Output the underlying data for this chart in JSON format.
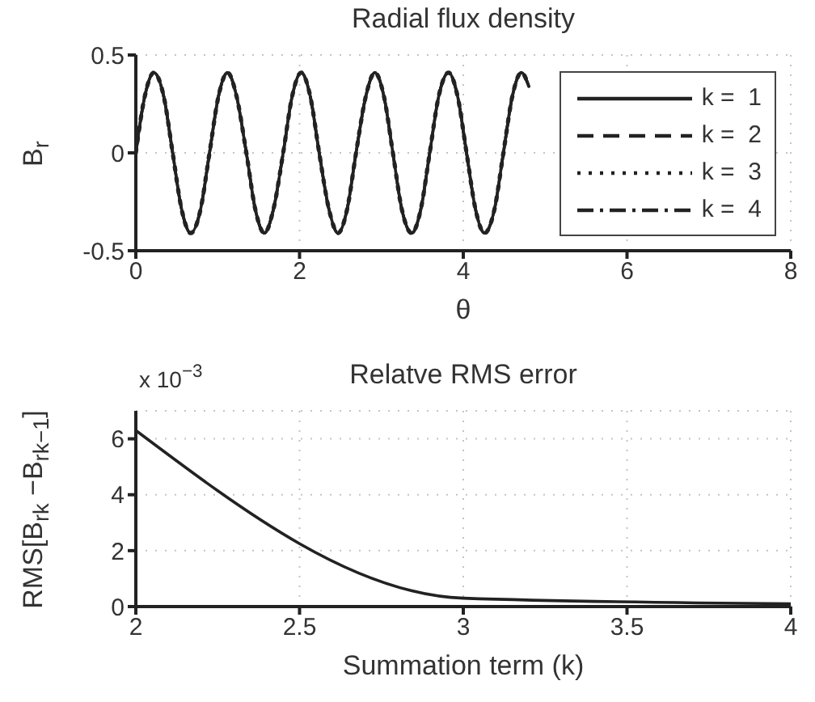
{
  "chart_data": [
    {
      "type": "line",
      "title": "Radial flux density",
      "xlabel": "θ",
      "ylabel": "B$_{r}$",
      "x": [
        0,
        0.11,
        0.22,
        0.34,
        0.45,
        0.56,
        0.67,
        0.79,
        0.9,
        1.01,
        1.12,
        1.23,
        1.35,
        1.46,
        1.57,
        1.68,
        1.8,
        1.91,
        2.02,
        2.13,
        2.24,
        2.36,
        2.47,
        2.58,
        2.69,
        2.81,
        2.92,
        3.03,
        3.14,
        3.25,
        3.37,
        3.48,
        3.59,
        3.7,
        3.82,
        3.93,
        4.04,
        4.15,
        4.26,
        4.38,
        4.49,
        4.6,
        4.71,
        4.8
      ],
      "series": [
        {
          "name": "k =  1",
          "color": "#222222",
          "line_style": "solid",
          "values": [
            0,
            0.29,
            0.41,
            0.29,
            0,
            -0.29,
            -0.41,
            -0.29,
            0,
            0.29,
            0.41,
            0.29,
            0,
            -0.29,
            -0.41,
            -0.29,
            0,
            0.29,
            0.41,
            0.29,
            0,
            -0.29,
            -0.41,
            -0.29,
            0,
            0.29,
            0.41,
            0.29,
            0,
            -0.29,
            -0.41,
            -0.29,
            0,
            0.29,
            0.41,
            0.29,
            0,
            -0.29,
            -0.41,
            -0.29,
            0,
            0.29,
            0.41,
            0.34
          ]
        },
        {
          "name": "k =  2",
          "color": "#222222",
          "line_style": "dashed",
          "values": [
            0,
            0.29,
            0.41,
            0.29,
            0,
            -0.29,
            -0.41,
            -0.29,
            0,
            0.29,
            0.41,
            0.29,
            0,
            -0.29,
            -0.41,
            -0.29,
            0,
            0.29,
            0.41,
            0.29,
            0,
            -0.29,
            -0.41,
            -0.29,
            0,
            0.29,
            0.41,
            0.29,
            0,
            -0.29,
            -0.41,
            -0.29,
            0,
            0.29,
            0.41,
            0.29,
            0,
            -0.29,
            -0.41,
            -0.29,
            0,
            0.29,
            0.41,
            0.34
          ]
        },
        {
          "name": "k =  3",
          "color": "#222222",
          "line_style": "dotted",
          "values": [
            0,
            0.29,
            0.41,
            0.29,
            0,
            -0.29,
            -0.41,
            -0.29,
            0,
            0.29,
            0.41,
            0.29,
            0,
            -0.29,
            -0.41,
            -0.29,
            0,
            0.29,
            0.41,
            0.29,
            0,
            -0.29,
            -0.41,
            -0.29,
            0,
            0.29,
            0.41,
            0.29,
            0,
            -0.29,
            -0.41,
            -0.29,
            0,
            0.29,
            0.41,
            0.29,
            0,
            -0.29,
            -0.41,
            -0.29,
            0,
            0.29,
            0.41,
            0.34
          ]
        },
        {
          "name": "k =  4",
          "color": "#222222",
          "line_style": "dashdot",
          "values": [
            0,
            0.29,
            0.41,
            0.29,
            0,
            -0.29,
            -0.41,
            -0.29,
            0,
            0.29,
            0.41,
            0.29,
            0,
            -0.29,
            -0.41,
            -0.29,
            0,
            0.29,
            0.41,
            0.29,
            0,
            -0.29,
            -0.41,
            -0.29,
            0,
            0.29,
            0.41,
            0.29,
            0,
            -0.29,
            -0.41,
            -0.29,
            0,
            0.29,
            0.41,
            0.29,
            0,
            -0.29,
            -0.41,
            -0.29,
            0,
            0.29,
            0.41,
            0.34
          ]
        }
      ],
      "xlim": [
        0,
        8
      ],
      "xticks": [
        0,
        2,
        4,
        6,
        8
      ],
      "ylim": [
        -0.5,
        0.5
      ],
      "yticks": [
        -0.5,
        0,
        0.5
      ],
      "grid": true,
      "legend": "top right",
      "marker": "none"
    },
    {
      "type": "line",
      "title": "Relatve RMS error",
      "xlabel": "Summation term (k)",
      "ylabel": "RMS[B$_{rk}$ −B$_{rk−1}$]",
      "annotations": [
        "x 10$^{−3}$"
      ],
      "x": [
        2,
        3,
        4
      ],
      "series": [
        {
          "color": "#222222",
          "values": [
            6.3,
            0.3,
            0.1
          ]
        }
      ],
      "xlim": [
        2,
        4
      ],
      "xticks": [
        2,
        2.5,
        3,
        3.5,
        4
      ],
      "ylim": [
        0,
        7
      ],
      "yticks": [
        0,
        2,
        4,
        6
      ],
      "grid": true,
      "legend": false,
      "marker": "none",
      "line_style": "solid"
    }
  ]
}
